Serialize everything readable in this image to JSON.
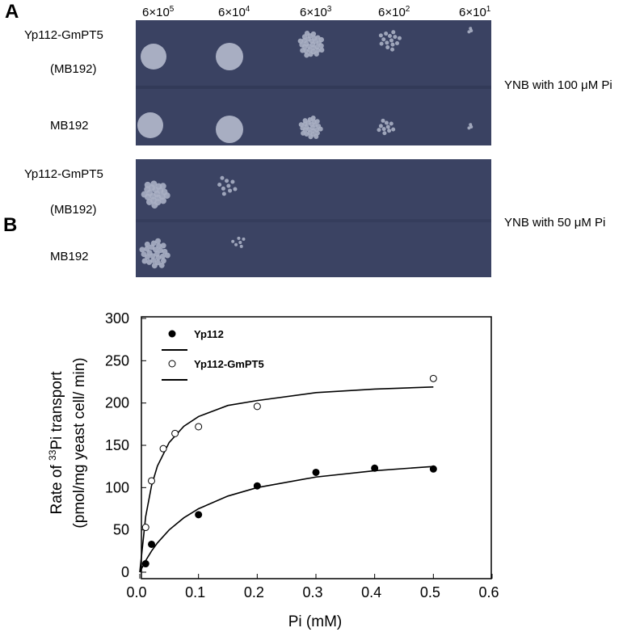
{
  "panel_a": {
    "label": "A",
    "dilutions": [
      {
        "base": "6×10",
        "exp": "5"
      },
      {
        "base": "6×10",
        "exp": "4"
      },
      {
        "base": "6×10",
        "exp": "3"
      },
      {
        "base": "6×10",
        "exp": "2"
      },
      {
        "base": "6×10",
        "exp": "1"
      }
    ],
    "plates": [
      {
        "condition": "YNB with 100 μM Pi",
        "rows": [
          [
            "Yp112-GmPT5",
            "(MB192)"
          ],
          [
            "MB192"
          ]
        ]
      },
      {
        "condition": "YNB with 50 μM Pi",
        "rows": [
          [
            "Yp112-GmPT5",
            "(MB192)"
          ],
          [
            "MB192"
          ]
        ]
      }
    ]
  },
  "chart_data": {
    "type": "scatter",
    "panel_label": "B",
    "xlabel": "Pi (mM)",
    "ylabel": {
      "pre": "Rate of ",
      "sup": "33",
      "post": "Pi transport",
      "line2": "(pmol/mg yeast cell/ min)"
    },
    "xlim": [
      0,
      0.6
    ],
    "ylim": [
      0,
      300
    ],
    "xticks": [
      {
        "value": 0,
        "label": "0.0"
      },
      0.1,
      0.2,
      0.3,
      0.4,
      0.5,
      0.6
    ],
    "yticks": [
      0,
      50,
      100,
      150,
      200,
      250,
      300
    ],
    "series": [
      {
        "name": "Yp112",
        "color": "#000000",
        "marker": "filled",
        "x": [
          0.01,
          0.02,
          0.1,
          0.2,
          0.3,
          0.4,
          0.5
        ],
        "values": [
          10,
          33,
          68,
          102,
          118,
          123,
          122
        ],
        "fit_x": [
          0,
          0.01,
          0.02,
          0.03,
          0.05,
          0.075,
          0.1,
          0.15,
          0.2,
          0.3,
          0.4,
          0.5
        ],
        "fit_values": [
          0,
          13.6,
          25,
          34.6,
          50,
          64.3,
          75,
          90,
          100,
          112.5,
          120,
          125
        ]
      },
      {
        "name": "Yp112-GmPT5",
        "color": "#000000",
        "marker": "open",
        "x": [
          0.01,
          0.02,
          0.04,
          0.06,
          0.1,
          0.2,
          0.5
        ],
        "values": [
          53,
          108,
          146,
          164,
          172,
          196,
          229
        ],
        "fit_x": [
          0,
          0.01,
          0.02,
          0.03,
          0.05,
          0.075,
          0.1,
          0.15,
          0.2,
          0.3,
          0.4,
          0.5
        ],
        "fit_values": [
          0,
          65.7,
          102.2,
          125.5,
          153.3,
          172.5,
          184,
          197.1,
          202.9,
          212.3,
          216.5,
          219
        ]
      }
    ]
  }
}
